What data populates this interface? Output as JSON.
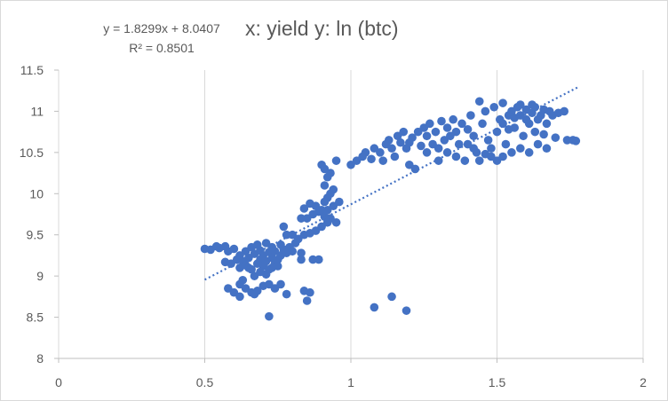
{
  "chart_data": {
    "type": "scatter",
    "title": "x: yield y: ln (btc)",
    "xlabel": "",
    "ylabel": "",
    "xlim": [
      0,
      2
    ],
    "ylim": [
      8,
      11.5
    ],
    "x_ticks": [
      "0",
      "0.5",
      "1",
      "1.5",
      "2"
    ],
    "y_ticks": [
      "8",
      "8.5",
      "9",
      "9.5",
      "10",
      "10.5",
      "11",
      "11.5"
    ],
    "grid": "vertical",
    "legend": "none",
    "trendline": {
      "type": "linear",
      "slope": 1.8299,
      "intercept": 8.0407,
      "r2": 0.8501,
      "equation_label": "y = 1.8299x + 8.0407",
      "r2_label": "R² = 0.8501",
      "x_range": [
        0.5,
        1.78
      ]
    },
    "colors": {
      "points": "#4472c4",
      "trendline": "#4472c4",
      "grid": "#d9d9d9",
      "text": "#595959"
    },
    "points": [
      [
        0.5,
        9.33
      ],
      [
        0.52,
        9.32
      ],
      [
        0.54,
        9.36
      ],
      [
        0.55,
        9.34
      ],
      [
        0.57,
        9.36
      ],
      [
        0.58,
        9.3
      ],
      [
        0.6,
        9.33
      ],
      [
        0.57,
        9.17
      ],
      [
        0.59,
        9.15
      ],
      [
        0.61,
        9.2
      ],
      [
        0.62,
        9.1
      ],
      [
        0.62,
        9.25
      ],
      [
        0.63,
        9.18
      ],
      [
        0.64,
        9.3
      ],
      [
        0.64,
        9.13
      ],
      [
        0.65,
        9.22
      ],
      [
        0.66,
        9.08
      ],
      [
        0.66,
        9.35
      ],
      [
        0.67,
        9.27
      ],
      [
        0.68,
        9.15
      ],
      [
        0.68,
        9.38
      ],
      [
        0.69,
        9.2
      ],
      [
        0.69,
        9.31
      ],
      [
        0.7,
        9.12
      ],
      [
        0.7,
        9.25
      ],
      [
        0.71,
        9.4
      ],
      [
        0.71,
        9.18
      ],
      [
        0.72,
        9.29
      ],
      [
        0.72,
        9.08
      ],
      [
        0.73,
        9.22
      ],
      [
        0.73,
        9.35
      ],
      [
        0.74,
        9.15
      ],
      [
        0.74,
        9.3
      ],
      [
        0.75,
        9.2
      ],
      [
        0.76,
        9.25
      ],
      [
        0.76,
        9.38
      ],
      [
        0.77,
        9.32
      ],
      [
        0.78,
        9.28
      ],
      [
        0.79,
        9.35
      ],
      [
        0.8,
        9.3
      ],
      [
        0.81,
        9.4
      ],
      [
        0.83,
        9.28
      ],
      [
        0.65,
        9.1
      ],
      [
        0.67,
        9.0
      ],
      [
        0.69,
        9.05
      ],
      [
        0.71,
        9.02
      ],
      [
        0.73,
        9.1
      ],
      [
        0.75,
        9.12
      ],
      [
        0.58,
        8.85
      ],
      [
        0.6,
        8.8
      ],
      [
        0.62,
        8.9
      ],
      [
        0.63,
        8.95
      ],
      [
        0.64,
        8.85
      ],
      [
        0.66,
        8.8
      ],
      [
        0.68,
        8.82
      ],
      [
        0.7,
        8.88
      ],
      [
        0.72,
        8.9
      ],
      [
        0.74,
        8.85
      ],
      [
        0.76,
        8.9
      ],
      [
        0.78,
        8.78
      ],
      [
        0.62,
        8.75
      ],
      [
        0.67,
        8.78
      ],
      [
        0.84,
        8.82
      ],
      [
        0.86,
        8.8
      ],
      [
        0.85,
        8.7
      ],
      [
        0.72,
        8.51
      ],
      [
        0.83,
        9.2
      ],
      [
        0.87,
        9.2
      ],
      [
        0.89,
        9.2
      ],
      [
        0.77,
        9.6
      ],
      [
        0.78,
        9.5
      ],
      [
        0.8,
        9.5
      ],
      [
        0.82,
        9.45
      ],
      [
        0.84,
        9.5
      ],
      [
        0.86,
        9.52
      ],
      [
        0.88,
        9.55
      ],
      [
        0.83,
        9.7
      ],
      [
        0.85,
        9.7
      ],
      [
        0.87,
        9.75
      ],
      [
        0.84,
        9.82
      ],
      [
        0.86,
        9.88
      ],
      [
        0.88,
        9.85
      ],
      [
        0.89,
        9.78
      ],
      [
        0.9,
        9.8
      ],
      [
        0.91,
        9.72
      ],
      [
        0.92,
        9.8
      ],
      [
        0.93,
        9.7
      ],
      [
        0.9,
        9.6
      ],
      [
        0.92,
        9.65
      ],
      [
        0.95,
        9.65
      ],
      [
        0.91,
        9.9
      ],
      [
        0.92,
        9.95
      ],
      [
        0.93,
        10.0
      ],
      [
        0.94,
        10.05
      ],
      [
        0.91,
        10.1
      ],
      [
        0.92,
        10.2
      ],
      [
        0.91,
        10.3
      ],
      [
        0.9,
        10.35
      ],
      [
        0.93,
        10.25
      ],
      [
        0.95,
        10.4
      ],
      [
        0.94,
        9.85
      ],
      [
        0.96,
        9.9
      ],
      [
        1.0,
        10.35
      ],
      [
        1.02,
        10.4
      ],
      [
        1.04,
        10.45
      ],
      [
        1.05,
        10.5
      ],
      [
        1.07,
        10.42
      ],
      [
        1.08,
        10.55
      ],
      [
        1.1,
        10.5
      ],
      [
        1.11,
        10.4
      ],
      [
        1.12,
        10.6
      ],
      [
        1.13,
        10.65
      ],
      [
        1.14,
        10.55
      ],
      [
        1.15,
        10.45
      ],
      [
        1.16,
        10.7
      ],
      [
        1.17,
        10.62
      ],
      [
        1.18,
        10.75
      ],
      [
        1.19,
        10.55
      ],
      [
        1.2,
        10.35
      ],
      [
        1.21,
        10.68
      ],
      [
        1.22,
        10.3
      ],
      [
        1.23,
        10.75
      ],
      [
        1.25,
        10.8
      ],
      [
        1.26,
        10.7
      ],
      [
        1.27,
        10.85
      ],
      [
        1.28,
        10.6
      ],
      [
        1.29,
        10.75
      ],
      [
        1.3,
        10.4
      ],
      [
        1.31,
        10.88
      ],
      [
        1.32,
        10.65
      ],
      [
        1.33,
        10.8
      ],
      [
        1.34,
        10.7
      ],
      [
        1.35,
        10.9
      ],
      [
        1.36,
        10.75
      ],
      [
        1.37,
        10.6
      ],
      [
        1.38,
        10.85
      ],
      [
        1.39,
        10.4
      ],
      [
        1.4,
        10.78
      ],
      [
        1.41,
        10.95
      ],
      [
        1.42,
        10.7
      ],
      [
        1.43,
        10.5
      ],
      [
        1.44,
        11.12
      ],
      [
        1.45,
        10.85
      ],
      [
        1.46,
        11.0
      ],
      [
        1.47,
        10.65
      ],
      [
        1.48,
        10.45
      ],
      [
        1.49,
        11.05
      ],
      [
        1.5,
        10.75
      ],
      [
        1.5,
        10.4
      ],
      [
        1.51,
        10.9
      ],
      [
        1.52,
        11.1
      ],
      [
        1.53,
        10.6
      ],
      [
        1.54,
        10.95
      ],
      [
        1.55,
        10.5
      ],
      [
        1.55,
        11.0
      ],
      [
        1.56,
        10.8
      ],
      [
        1.57,
        11.05
      ],
      [
        1.58,
        10.55
      ],
      [
        1.58,
        10.95
      ],
      [
        1.59,
        10.7
      ],
      [
        1.6,
        11.02
      ],
      [
        1.61,
        10.85
      ],
      [
        1.61,
        10.5
      ],
      [
        1.62,
        10.98
      ],
      [
        1.63,
        10.75
      ],
      [
        1.63,
        11.05
      ],
      [
        1.64,
        10.6
      ],
      [
        1.65,
        10.95
      ],
      [
        1.66,
        11.02
      ],
      [
        1.67,
        10.85
      ],
      [
        1.67,
        10.55
      ],
      [
        1.68,
        11.0
      ],
      [
        1.69,
        10.95
      ],
      [
        1.7,
        10.68
      ],
      [
        1.71,
        10.98
      ],
      [
        1.73,
        11.0
      ],
      [
        1.74,
        10.65
      ],
      [
        1.76,
        10.65
      ],
      [
        1.77,
        10.64
      ],
      [
        1.52,
        10.85
      ],
      [
        1.54,
        10.78
      ],
      [
        1.56,
        10.92
      ],
      [
        1.58,
        11.08
      ],
      [
        1.6,
        10.9
      ],
      [
        1.62,
        11.08
      ],
      [
        1.64,
        10.9
      ],
      [
        1.66,
        10.72
      ],
      [
        1.46,
        10.48
      ],
      [
        1.48,
        10.55
      ],
      [
        1.52,
        10.45
      ],
      [
        1.44,
        10.4
      ],
      [
        1.42,
        10.55
      ],
      [
        1.4,
        10.6
      ],
      [
        1.36,
        10.45
      ],
      [
        1.33,
        10.5
      ],
      [
        1.3,
        10.55
      ],
      [
        1.26,
        10.5
      ],
      [
        1.24,
        10.58
      ],
      [
        1.2,
        10.62
      ],
      [
        1.08,
        8.62
      ],
      [
        1.14,
        8.75
      ],
      [
        1.19,
        8.58
      ]
    ]
  }
}
